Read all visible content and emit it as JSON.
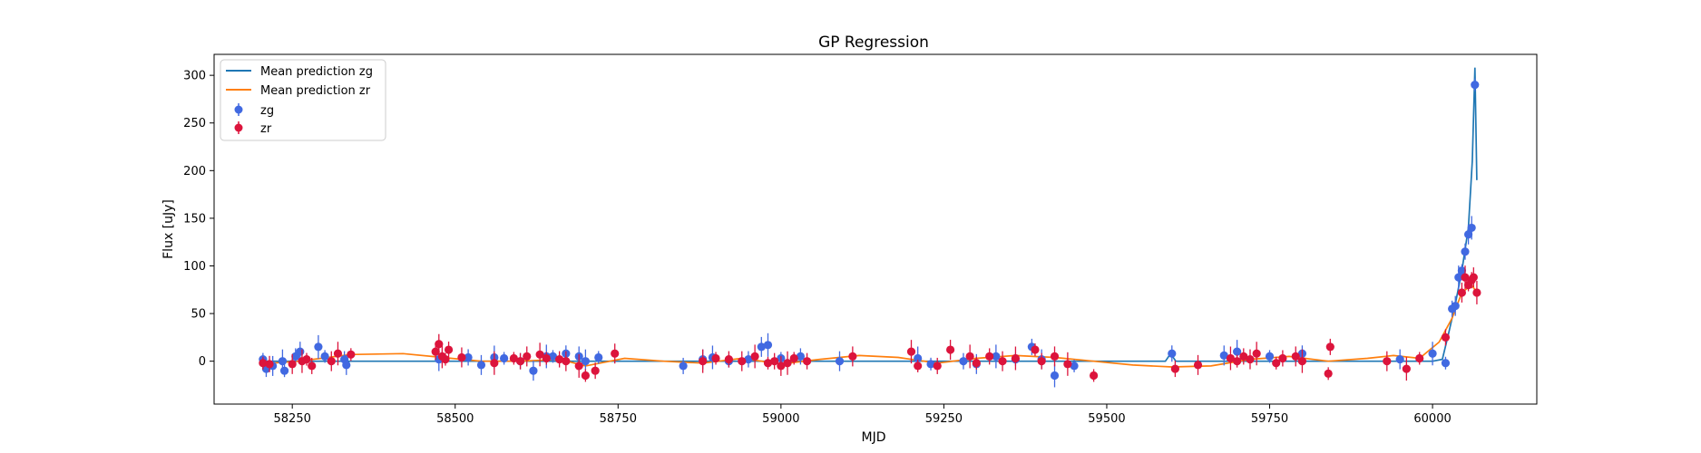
{
  "chart_data": {
    "type": "scatter",
    "title": "GP Regression",
    "xlabel": "MJD",
    "ylabel": "Flux [uJy]",
    "xlim": [
      58130,
      60160
    ],
    "ylim": [
      -45,
      322
    ],
    "xticks": [
      58250,
      58500,
      58750,
      59000,
      59250,
      59500,
      59750,
      60000
    ],
    "yticks": [
      0,
      50,
      100,
      150,
      200,
      250,
      300
    ],
    "grid": false,
    "legend_position": "top-left",
    "colors": {
      "zg_line": "#1f77b4",
      "zr_line": "#ff7f0e",
      "zg_points": "#4169e1",
      "zr_points": "#dc143c"
    },
    "series": [
      {
        "name": "Mean prediction zg",
        "kind": "line",
        "color": "#1f77b4",
        "x": [
          58200,
          58300,
          58400,
          58500,
          58600,
          58700,
          58800,
          58900,
          59000,
          59100,
          59200,
          59300,
          59400,
          59500,
          59590,
          59598,
          59606,
          59650,
          59750,
          59850,
          59950,
          60000,
          60015,
          60025,
          60035,
          60045,
          60055,
          60061,
          60065,
          60068
        ],
        "y": [
          0,
          0,
          0,
          0,
          0,
          0,
          0,
          0,
          0,
          0,
          0,
          0,
          0,
          0,
          0,
          8,
          0,
          0,
          0,
          0,
          0,
          0,
          2,
          30,
          60,
          95,
          140,
          210,
          308,
          190
        ]
      },
      {
        "name": "Mean prediction zr",
        "kind": "line",
        "color": "#ff7f0e",
        "x": [
          58200,
          58260,
          58340,
          58420,
          58480,
          58540,
          58600,
          58660,
          58700,
          58760,
          58820,
          58880,
          58940,
          59000,
          59060,
          59120,
          59180,
          59240,
          59300,
          59360,
          59420,
          59480,
          59540,
          59600,
          59660,
          59720,
          59780,
          59840,
          59900,
          59940,
          59980,
          60010,
          60030,
          60045,
          60060,
          60068
        ],
        "y": [
          -3,
          0,
          7,
          8,
          4,
          0,
          0,
          2,
          -5,
          3,
          0,
          -2,
          3,
          -3,
          2,
          6,
          4,
          -2,
          3,
          6,
          4,
          0,
          -4,
          -6,
          -5,
          2,
          5,
          0,
          3,
          6,
          3,
          20,
          45,
          72,
          80,
          72
        ]
      },
      {
        "name": "zg",
        "kind": "points",
        "color": "#4169e1",
        "x": [
          58205,
          58210,
          58220,
          58235,
          58238,
          58255,
          58262,
          58290,
          58300,
          58330,
          58333,
          58475,
          58480,
          58520,
          58540,
          58560,
          58575,
          58600,
          58620,
          58640,
          58650,
          58670,
          58690,
          58700,
          58720,
          58850,
          58880,
          58895,
          58920,
          58950,
          58970,
          58980,
          59000,
          59030,
          59090,
          59210,
          59230,
          59280,
          59300,
          59330,
          59360,
          59385,
          59400,
          59420,
          59450,
          59600,
          59680,
          59700,
          59750,
          59800,
          59950,
          60000,
          60020,
          60030,
          60035,
          60040,
          60045,
          60050,
          60055,
          60060,
          60065
        ],
        "y": [
          2,
          -8,
          -5,
          0,
          -10,
          5,
          10,
          15,
          5,
          2,
          -4,
          2,
          4,
          4,
          -4,
          4,
          3,
          0,
          -10,
          5,
          5,
          8,
          5,
          0,
          4,
          -5,
          2,
          4,
          0,
          2,
          15,
          17,
          3,
          5,
          0,
          3,
          -3,
          0,
          -3,
          5,
          2,
          15,
          2,
          -15,
          -5,
          8,
          6,
          10,
          5,
          8,
          2,
          8,
          -2,
          55,
          58,
          88,
          95,
          115,
          133,
          140,
          290
        ]
      },
      {
        "name": "zr",
        "kind": "points",
        "color": "#dc143c",
        "x": [
          58205,
          58215,
          58250,
          58265,
          58272,
          58280,
          58310,
          58320,
          58340,
          58470,
          58475,
          58480,
          58485,
          58490,
          58510,
          58560,
          58590,
          58600,
          58610,
          58630,
          58640,
          58660,
          58670,
          58690,
          58700,
          58715,
          58745,
          58880,
          58900,
          58920,
          58940,
          58960,
          58980,
          58990,
          59000,
          59010,
          59020,
          59040,
          59110,
          59200,
          59210,
          59240,
          59260,
          59290,
          59300,
          59320,
          59340,
          59360,
          59390,
          59400,
          59420,
          59440,
          59480,
          59605,
          59640,
          59690,
          59700,
          59710,
          59720,
          59730,
          59760,
          59770,
          59790,
          59800,
          59840,
          59843,
          59930,
          59960,
          59980,
          60020,
          60045,
          60050,
          60055,
          60060,
          60063,
          60068
        ],
        "y": [
          -2,
          -3,
          -3,
          0,
          2,
          -5,
          0,
          8,
          7,
          10,
          18,
          5,
          2,
          12,
          4,
          -2,
          3,
          0,
          5,
          7,
          3,
          2,
          0,
          -5,
          -15,
          -10,
          8,
          0,
          3,
          2,
          0,
          5,
          -2,
          0,
          -5,
          -2,
          3,
          0,
          5,
          10,
          -5,
          -5,
          12,
          5,
          -2,
          5,
          0,
          3,
          12,
          0,
          5,
          -3,
          -15,
          -8,
          -4,
          3,
          0,
          5,
          2,
          8,
          -2,
          3,
          5,
          0,
          -13,
          15,
          0,
          -8,
          3,
          25,
          72,
          88,
          80,
          85,
          88,
          72
        ]
      }
    ]
  }
}
